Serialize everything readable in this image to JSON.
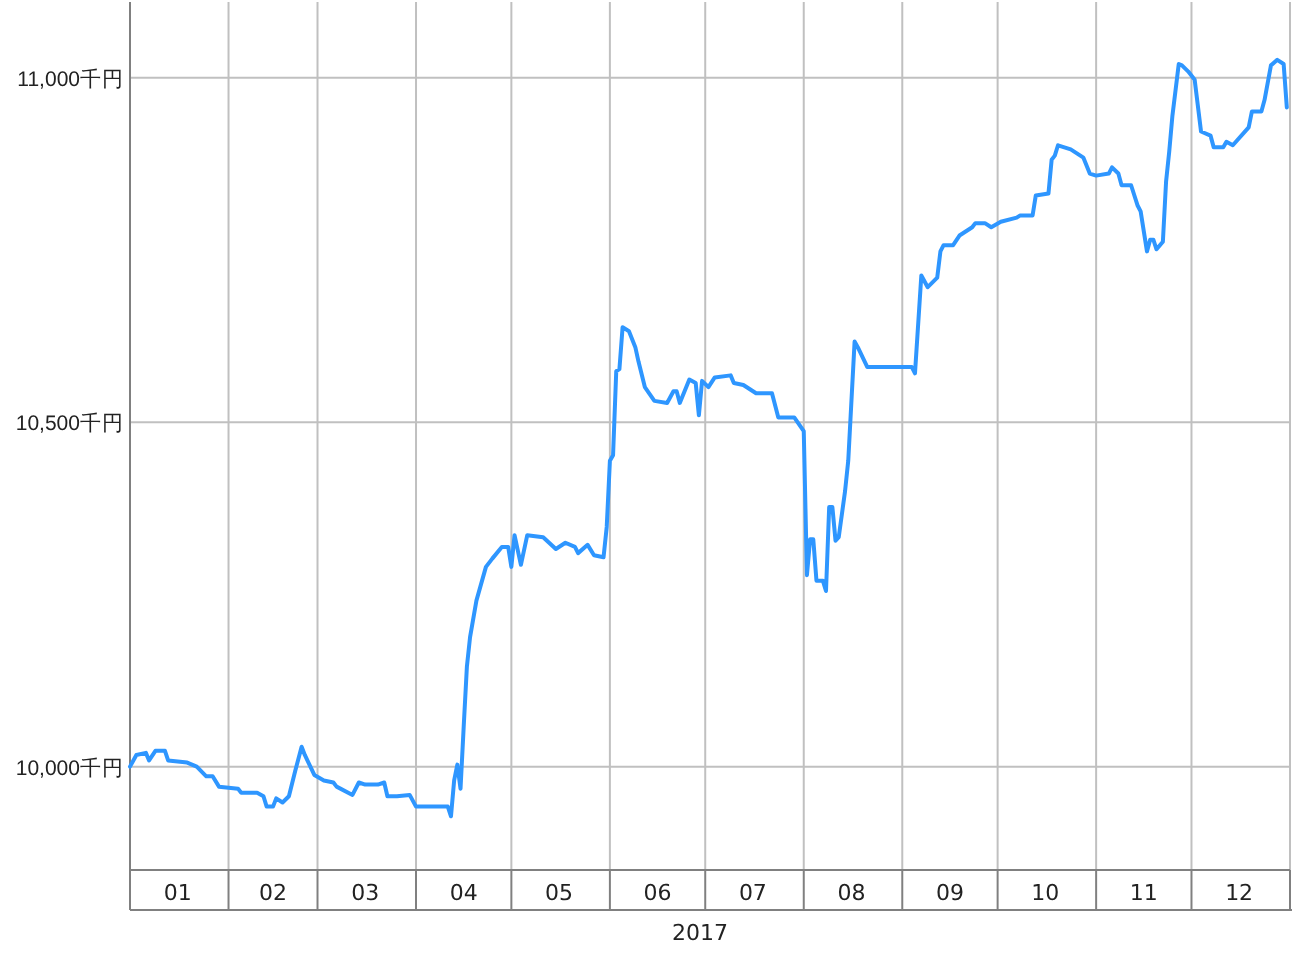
{
  "chart_data": {
    "type": "line",
    "xlabel": "2017",
    "xlim": [
      "2017-01-01",
      "2018-01-01"
    ],
    "ylim": [
      9850,
      11110
    ],
    "yticks": [
      {
        "value": 10000,
        "label": "10,000千円"
      },
      {
        "value": 10500,
        "label": "10,500千円"
      },
      {
        "value": 11000,
        "label": "11,000千円"
      }
    ],
    "xticks": [
      {
        "value": "2017-01-01",
        "label": null
      },
      {
        "value": "2017-01-16",
        "label": "01"
      },
      {
        "value": "2017-02-01",
        "label": null
      },
      {
        "value": "2017-02-15",
        "label": "02"
      },
      {
        "value": "2017-03-01",
        "label": null
      },
      {
        "value": "2017-03-16",
        "label": "03"
      },
      {
        "value": "2017-04-01",
        "label": null
      },
      {
        "value": "2017-04-16",
        "label": "04"
      },
      {
        "value": "2017-05-01",
        "label": null
      },
      {
        "value": "2017-05-16",
        "label": "05"
      },
      {
        "value": "2017-06-01",
        "label": null
      },
      {
        "value": "2017-06-16",
        "label": "06"
      },
      {
        "value": "2017-07-01",
        "label": null
      },
      {
        "value": "2017-07-16",
        "label": "07"
      },
      {
        "value": "2017-08-01",
        "label": null
      },
      {
        "value": "2017-08-16",
        "label": "08"
      },
      {
        "value": "2017-09-01",
        "label": null
      },
      {
        "value": "2017-09-16",
        "label": "09"
      },
      {
        "value": "2017-10-01",
        "label": null
      },
      {
        "value": "2017-10-16",
        "label": "10"
      },
      {
        "value": "2017-11-01",
        "label": null
      },
      {
        "value": "2017-11-16",
        "label": "11"
      },
      {
        "value": "2017-12-01",
        "label": null
      },
      {
        "value": "2017-12-16",
        "label": "12"
      },
      {
        "value": "2018-01-01",
        "label": null
      }
    ],
    "grid": true,
    "marker": "none",
    "line_style": "solid",
    "series": [
      {
        "color": "#2e96ff",
        "x": [
          "2017-01-01",
          "2017-01-03",
          "2017-01-06",
          "2017-01-07",
          "2017-01-09",
          "2017-01-12",
          "2017-01-13",
          "2017-01-19",
          "2017-01-22",
          "2017-01-25",
          "2017-01-27",
          "2017-01-29",
          "2017-02-04",
          "2017-02-05",
          "2017-02-10",
          "2017-02-12",
          "2017-02-13",
          "2017-02-15",
          "2017-02-16",
          "2017-02-18",
          "2017-02-20",
          "2017-02-22",
          "2017-02-24",
          "2017-02-25",
          "2017-02-28",
          "2017-03-03",
          "2017-03-06",
          "2017-03-07",
          "2017-03-12",
          "2017-03-14",
          "2017-03-16",
          "2017-03-20",
          "2017-03-22",
          "2017-03-23",
          "2017-03-26",
          "2017-03-30",
          "2017-04-01",
          "2017-04-11",
          "2017-04-12",
          "2017-04-13",
          "2017-04-14",
          "2017-04-15",
          "2017-04-16",
          "2017-04-17",
          "2017-04-18",
          "2017-04-20",
          "2017-04-23",
          "2017-04-25",
          "2017-04-28",
          "2017-04-30",
          "2017-05-01",
          "2017-05-02",
          "2017-05-04",
          "2017-05-06",
          "2017-05-11",
          "2017-05-15",
          "2017-05-18",
          "2017-05-21",
          "2017-05-22",
          "2017-05-25",
          "2017-05-27",
          "2017-05-30",
          "2017-05-31",
          "2017-06-01",
          "2017-06-02",
          "2017-06-03",
          "2017-06-04",
          "2017-06-05",
          "2017-06-07",
          "2017-06-09",
          "2017-06-10",
          "2017-06-12",
          "2017-06-15",
          "2017-06-19",
          "2017-06-21",
          "2017-06-22",
          "2017-06-23",
          "2017-06-26",
          "2017-06-28",
          "2017-06-29",
          "2017-06-30",
          "2017-07-02",
          "2017-07-04",
          "2017-07-09",
          "2017-07-10",
          "2017-07-13",
          "2017-07-17",
          "2017-07-22",
          "2017-07-24",
          "2017-07-29",
          "2017-08-01",
          "2017-08-02",
          "2017-08-03",
          "2017-08-04",
          "2017-08-05",
          "2017-08-07",
          "2017-08-08",
          "2017-08-09",
          "2017-08-10",
          "2017-08-11",
          "2017-08-12",
          "2017-08-14",
          "2017-08-15",
          "2017-08-17",
          "2017-08-18",
          "2017-08-21",
          "2017-08-25",
          "2017-09-04",
          "2017-09-05",
          "2017-09-07",
          "2017-09-09",
          "2017-09-12",
          "2017-09-13",
          "2017-09-14",
          "2017-09-17",
          "2017-09-19",
          "2017-09-23",
          "2017-09-24",
          "2017-09-27",
          "2017-09-29",
          "2017-10-02",
          "2017-10-07",
          "2017-10-08",
          "2017-10-12",
          "2017-10-13",
          "2017-10-17",
          "2017-10-18",
          "2017-10-19",
          "2017-10-20",
          "2017-10-24",
          "2017-10-28",
          "2017-10-30",
          "2017-11-01",
          "2017-11-05",
          "2017-11-06",
          "2017-11-08",
          "2017-11-09",
          "2017-11-12",
          "2017-11-14",
          "2017-11-15",
          "2017-11-17",
          "2017-11-18",
          "2017-11-19",
          "2017-11-20",
          "2017-11-22",
          "2017-11-23",
          "2017-11-24",
          "2017-11-25",
          "2017-11-27",
          "2017-11-28",
          "2017-11-30",
          "2017-12-02",
          "2017-12-04",
          "2017-12-07",
          "2017-12-08",
          "2017-12-11",
          "2017-12-12",
          "2017-12-14",
          "2017-12-19",
          "2017-12-20",
          "2017-12-23",
          "2017-12-24",
          "2017-12-26",
          "2017-12-28",
          "2017-12-30",
          "2017-12-31"
        ],
        "values": [
          10000,
          10017,
          10020,
          10009,
          10023,
          10023,
          10009,
          10006,
          10000,
          9986,
          9986,
          9971,
          9968,
          9962,
          9962,
          9957,
          9942,
          9942,
          9954,
          9948,
          9957,
          9994,
          10029,
          10017,
          9988,
          9980,
          9977,
          9971,
          9959,
          9977,
          9974,
          9974,
          9977,
          9957,
          9957,
          9959,
          9942,
          9942,
          9928,
          9980,
          10003,
          9968,
          10058,
          10145,
          10188,
          10241,
          10290,
          10302,
          10319,
          10319,
          10290,
          10336,
          10293,
          10336,
          10333,
          10316,
          10325,
          10319,
          10310,
          10322,
          10307,
          10304,
          10348,
          10444,
          10452,
          10574,
          10577,
          10638,
          10632,
          10609,
          10588,
          10551,
          10531,
          10528,
          10545,
          10545,
          10528,
          10562,
          10557,
          10510,
          10560,
          10551,
          10565,
          10568,
          10557,
          10554,
          10542,
          10542,
          10507,
          10507,
          10487,
          10278,
          10330,
          10330,
          10270,
          10270,
          10255,
          10377,
          10377,
          10328,
          10333,
          10400,
          10444,
          10617,
          10609,
          10580,
          10580,
          10580,
          10571,
          10713,
          10696,
          10710,
          10748,
          10757,
          10757,
          10771,
          10783,
          10789,
          10789,
          10783,
          10791,
          10797,
          10800,
          10800,
          10829,
          10832,
          10881,
          10887,
          10902,
          10896,
          10884,
          10861,
          10858,
          10861,
          10870,
          10861,
          10844,
          10844,
          10815,
          10806,
          10748,
          10765,
          10765,
          10751,
          10762,
          10849,
          10893,
          10945,
          11020,
          11018,
          11009,
          10997,
          10922,
          10916,
          10899,
          10899,
          10907,
          10902,
          10928,
          10951,
          10951,
          10968,
          11018,
          11026,
          11020,
          10957
        ]
      }
    ]
  }
}
